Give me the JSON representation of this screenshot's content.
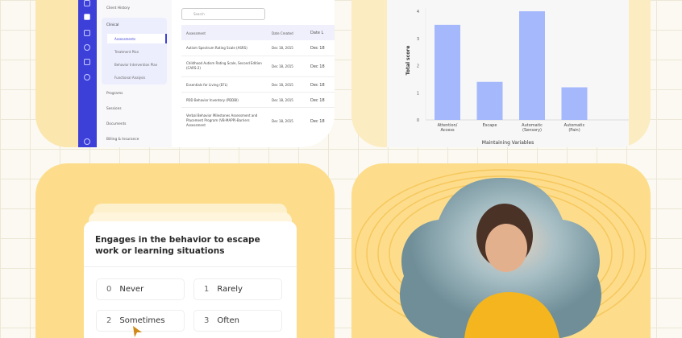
{
  "app": {
    "nav": {
      "client_history": "Client History",
      "clinical": "Clinical",
      "sub": [
        "Assessments",
        "Treatment Plan",
        "Behavior Intervention Plan",
        "Functional Analysis"
      ],
      "programs": "Programs",
      "sessions": "Sessions",
      "documents": "Documents",
      "billing": "Billing & Insurance"
    },
    "search_placeholder": "Search",
    "table": {
      "headers": [
        "Assessment",
        "Date Created",
        "Date L"
      ],
      "rows": [
        {
          "name": "Autism Spectrum Rating Scale (ASRS)",
          "created": "Dec 18, 2015",
          "other": "Dec 18"
        },
        {
          "name": "Childhood Autism Rating Scale, Second Edition (CARS-2)",
          "created": "Dec 18, 2015",
          "other": "Dec 18"
        },
        {
          "name": "Essentials for Living (EFL)",
          "created": "Dec 18, 2015",
          "other": "Dec 18"
        },
        {
          "name": "PDD Behavior Inventory (PDDBI)",
          "created": "Dec 18, 2015",
          "other": "Dec 18"
        },
        {
          "name": "Verbal Behavior Milestones Assessment and Placement Program (VB-MAPP)-Barriers Assessment",
          "created": "Dec 18, 2015",
          "other": "Dec 18"
        }
      ]
    }
  },
  "chart_data": {
    "type": "bar",
    "categories": [
      "Attention/ Access",
      "Escape",
      "Automatic (Sensory)",
      "Automatic (Pain)"
    ],
    "values": [
      3.5,
      1.4,
      4.0,
      1.2
    ],
    "xlabel": "Maintaining Variables",
    "ylabel": "Total score",
    "ylim": [
      0,
      4
    ],
    "yticks": [
      0,
      1,
      2,
      3,
      4
    ],
    "color": "#a5b8fc"
  },
  "question": {
    "text": "Engages in the behavior to escape work or learning situations",
    "options": [
      {
        "num": "0",
        "label": "Never"
      },
      {
        "num": "1",
        "label": "Rarely"
      },
      {
        "num": "2",
        "label": "Sometimes"
      },
      {
        "num": "3",
        "label": "Often"
      }
    ]
  }
}
